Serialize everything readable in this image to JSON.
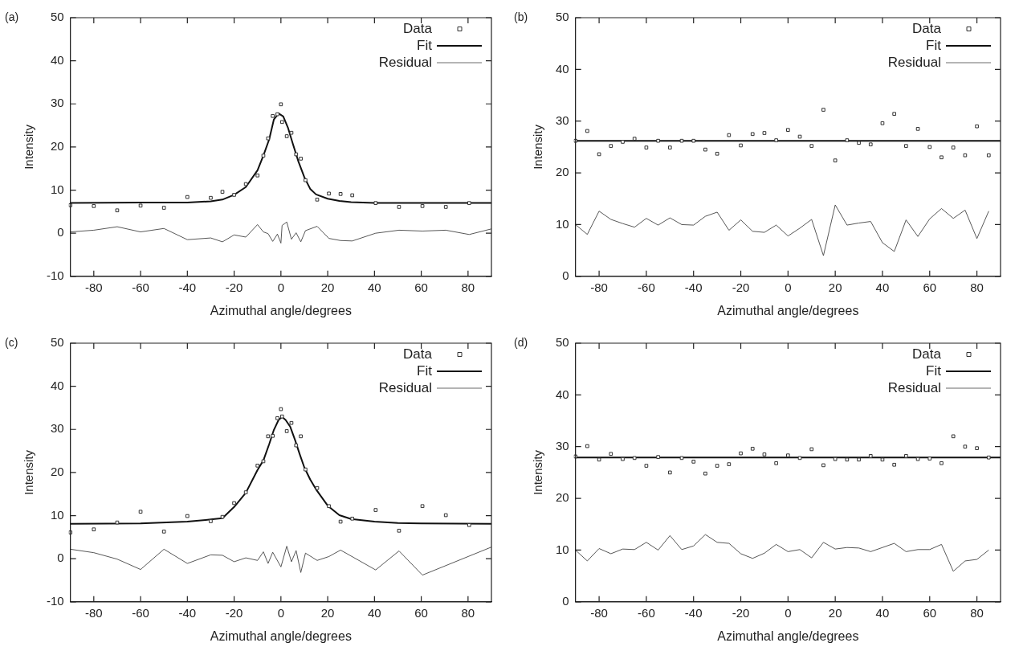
{
  "chart_data": [
    {
      "type": "scatter",
      "title": "(a)",
      "xlabel": "Azimuthal angle/degrees",
      "ylabel": "Intensity",
      "xlim": [
        -90,
        90
      ],
      "xticks": [
        -80,
        -60,
        -40,
        -20,
        0,
        20,
        40,
        60,
        80
      ],
      "ylim": [
        -10,
        50
      ],
      "yticks": [
        -10,
        0,
        10,
        20,
        30,
        40,
        50
      ],
      "grid": false,
      "legend": "top right",
      "series": [
        {
          "name": "Data",
          "type": "scatter",
          "marker": "square",
          "color": "#333333",
          "x": [
            -90,
            -80,
            -70,
            -60,
            -50,
            -40,
            -30,
            -25,
            -20,
            -15,
            -10,
            -7.5,
            -5.5,
            -3.5,
            -1.5,
            0,
            0.5,
            2.5,
            4.5,
            6.5,
            8.5,
            10.5,
            15.5,
            20.5,
            25.5,
            30.5,
            40.5,
            50.5,
            60.5,
            70.5,
            80.5
          ],
          "values": [
            6.5,
            6.3,
            5.3,
            6.4,
            5.9,
            8.4,
            8.2,
            9.6,
            8.9,
            11.4,
            13.4,
            18.0,
            22.0,
            27.2,
            27.6,
            29.9,
            25.8,
            22.5,
            23.3,
            18.3,
            17.3,
            12.3,
            7.8,
            9.2,
            9.1,
            8.8,
            7.0,
            6.1,
            6.3,
            6.1,
            7.0
          ]
        },
        {
          "name": "Fit",
          "type": "line",
          "marker": "none",
          "color": "#111111",
          "x": [
            -90,
            -60,
            -40,
            -30,
            -25,
            -20,
            -15,
            -10,
            -7.5,
            -5,
            -3,
            -1,
            1,
            3,
            5,
            7.5,
            10,
            12.5,
            15,
            20,
            25,
            30,
            40,
            90
          ],
          "values": [
            7.0,
            7.1,
            7.1,
            7.4,
            7.8,
            8.9,
            10.7,
            14.6,
            18.0,
            21.8,
            26.4,
            27.8,
            27.1,
            24.5,
            20.9,
            16.6,
            13.0,
            10.3,
            9.0,
            8.0,
            7.5,
            7.2,
            7.0,
            7.0
          ]
        },
        {
          "name": "Residual",
          "type": "line",
          "marker": "none",
          "color": "#444444",
          "x": [
            -90,
            -80,
            -70,
            -60,
            -50,
            -40,
            -30,
            -25,
            -20,
            -15,
            -10,
            -7.5,
            -5.5,
            -3.5,
            -1.5,
            0,
            0.5,
            2.5,
            4.5,
            6.5,
            8.5,
            10.5,
            15.5,
            20.5,
            25.5,
            30.5,
            40.5,
            50.5,
            60.5,
            70.5,
            80.5,
            90
          ],
          "values": [
            0.3,
            0.7,
            1.5,
            0.3,
            1.1,
            -1.5,
            -1.1,
            -2.0,
            -0.4,
            -0.9,
            2.0,
            0.3,
            -0.1,
            -1.9,
            -0.2,
            -2.3,
            1.8,
            2.6,
            -1.4,
            0.1,
            -2.0,
            0.6,
            1.6,
            -1.2,
            -1.7,
            -1.8,
            0.0,
            0.7,
            0.5,
            0.7,
            -0.3,
            1.0
          ]
        }
      ]
    },
    {
      "type": "scatter",
      "title": "(b)",
      "xlabel": "Azimuthal angle/degrees",
      "ylabel": "Intensity",
      "xlim": [
        -90,
        90
      ],
      "xticks": [
        -80,
        -60,
        -40,
        -20,
        0,
        20,
        40,
        60,
        80
      ],
      "ylim": [
        0,
        50
      ],
      "yticks": [
        0,
        10,
        20,
        30,
        40,
        50
      ],
      "grid": false,
      "legend": "top right",
      "series": [
        {
          "name": "Data",
          "type": "scatter",
          "marker": "square",
          "color": "#333333",
          "x": [
            -90,
            -85,
            -80,
            -75,
            -70,
            -65,
            -60,
            -55,
            -50,
            -45,
            -40,
            -35,
            -30,
            -25,
            -20,
            -15,
            -10,
            -5,
            0,
            5,
            10,
            15,
            20,
            25,
            30,
            35,
            40,
            45,
            50,
            55,
            60,
            65,
            70,
            75,
            80,
            85
          ],
          "values": [
            26.2,
            28.1,
            23.6,
            25.2,
            26.0,
            26.6,
            24.9,
            26.2,
            24.9,
            26.2,
            26.2,
            24.5,
            23.7,
            27.3,
            25.3,
            27.5,
            27.7,
            26.3,
            28.3,
            27.0,
            25.2,
            32.2,
            22.4,
            26.3,
            25.8,
            25.5,
            29.6,
            31.4,
            25.2,
            28.5,
            25.0,
            23.0,
            24.9,
            23.4,
            29.0,
            23.4
          ]
        },
        {
          "name": "Fit",
          "type": "line",
          "marker": "none",
          "color": "#111111",
          "x": [
            -90,
            90
          ],
          "values": [
            26.2,
            26.2
          ]
        },
        {
          "name": "Residual",
          "type": "line",
          "marker": "none",
          "color": "#444444",
          "x": [
            -90,
            -85,
            -80,
            -75,
            -70,
            -65,
            -60,
            -55,
            -50,
            -45,
            -40,
            -35,
            -30,
            -25,
            -20,
            -15,
            -10,
            -5,
            0,
            5,
            10,
            15,
            20,
            25,
            30,
            35,
            40,
            45,
            50,
            55,
            60,
            65,
            70,
            75,
            80,
            85
          ],
          "values": [
            10.0,
            8.1,
            12.6,
            11.0,
            10.2,
            9.5,
            11.2,
            9.9,
            11.3,
            10.0,
            9.9,
            11.6,
            12.4,
            8.9,
            10.9,
            8.7,
            8.5,
            9.9,
            7.8,
            9.3,
            11.0,
            4.0,
            13.8,
            9.9,
            10.3,
            10.6,
            6.5,
            4.8,
            10.9,
            7.7,
            11.1,
            13.1,
            11.2,
            12.8,
            7.3,
            12.6
          ]
        }
      ]
    },
    {
      "type": "scatter",
      "title": "(c)",
      "xlabel": "Azimuthal angle/degrees",
      "ylabel": "Intensity",
      "xlim": [
        -90,
        90
      ],
      "xticks": [
        -80,
        -60,
        -40,
        -20,
        0,
        20,
        40,
        60,
        80
      ],
      "ylim": [
        -10,
        50
      ],
      "yticks": [
        -10,
        0,
        10,
        20,
        30,
        40,
        50
      ],
      "grid": false,
      "legend": "top right",
      "series": [
        {
          "name": "Data",
          "type": "scatter",
          "marker": "square",
          "color": "#333333",
          "x": [
            -90,
            -80,
            -70,
            -60,
            -50,
            -40,
            -30,
            -25,
            -20,
            -15,
            -10,
            -7.5,
            -5.5,
            -3.5,
            -1.5,
            0,
            0.5,
            2.5,
            4.5,
            6.5,
            8.5,
            10.5,
            15.5,
            20.5,
            25.5,
            30.5,
            40.5,
            50.5,
            60.5,
            70.5,
            80.5
          ],
          "values": [
            6.1,
            6.8,
            8.4,
            10.9,
            6.3,
            9.9,
            8.7,
            9.7,
            12.9,
            15.4,
            21.6,
            22.6,
            28.4,
            28.5,
            32.6,
            34.7,
            33.0,
            29.6,
            31.5,
            26.3,
            28.4,
            20.7,
            16.4,
            12.2,
            8.6,
            9.3,
            11.3,
            6.5,
            12.2,
            10.1,
            7.8
          ]
        },
        {
          "name": "Fit",
          "type": "line",
          "marker": "none",
          "color": "#111111",
          "x": [
            -90,
            -60,
            -40,
            -30,
            -25,
            -20,
            -15,
            -10,
            -7.5,
            -5,
            -3,
            -1,
            0.5,
            2,
            4,
            6,
            8,
            10,
            12.5,
            15,
            20,
            25,
            30,
            40,
            50,
            60,
            90
          ],
          "values": [
            8.1,
            8.2,
            8.6,
            9.1,
            9.4,
            12.0,
            15.3,
            20.6,
            22.8,
            26.6,
            29.9,
            32.2,
            32.9,
            32.2,
            30.6,
            27.6,
            24.3,
            21.2,
            18.4,
            16.1,
            12.3,
            10.1,
            9.2,
            8.6,
            8.3,
            8.2,
            8.1
          ]
        },
        {
          "name": "Residual",
          "type": "line",
          "marker": "none",
          "color": "#444444",
          "x": [
            -90,
            -80,
            -70,
            -60,
            -50,
            -40,
            -30,
            -25,
            -20,
            -15,
            -10,
            -7.5,
            -5.5,
            -3.5,
            0,
            2.5,
            4.5,
            6.5,
            8.5,
            10.5,
            15.5,
            20.5,
            25.5,
            40.5,
            50.5,
            60.5,
            90
          ],
          "values": [
            2.2,
            1.4,
            -0.1,
            -2.5,
            2.2,
            -1.1,
            0.9,
            0.8,
            -0.7,
            0.2,
            -0.4,
            1.6,
            -1.1,
            1.5,
            -1.9,
            2.9,
            -0.7,
            1.9,
            -3.2,
            1.3,
            -0.4,
            0.5,
            2.0,
            -2.6,
            1.8,
            -3.8,
            2.7
          ]
        }
      ]
    },
    {
      "type": "scatter",
      "title": "(d)",
      "xlabel": "Azimuthal angle/degrees",
      "ylabel": "Intensity",
      "xlim": [
        -90,
        90
      ],
      "xticks": [
        -80,
        -60,
        -40,
        -20,
        0,
        20,
        40,
        60,
        80
      ],
      "ylim": [
        0,
        50
      ],
      "yticks": [
        0,
        10,
        20,
        30,
        40,
        50
      ],
      "grid": false,
      "legend": "top right",
      "series": [
        {
          "name": "Data",
          "type": "scatter",
          "marker": "square",
          "color": "#333333",
          "x": [
            -90,
            -85,
            -80,
            -75,
            -70,
            -65,
            -60,
            -55,
            -50,
            -45,
            -40,
            -35,
            -30,
            -25,
            -20,
            -15,
            -10,
            -5,
            0,
            5,
            10,
            15,
            20,
            25,
            30,
            35,
            40,
            45,
            50,
            55,
            60,
            65,
            70,
            75,
            80,
            85
          ],
          "values": [
            28.1,
            30.1,
            27.5,
            28.6,
            27.6,
            27.8,
            26.3,
            28.0,
            25.0,
            27.8,
            27.1,
            24.8,
            26.3,
            26.6,
            28.7,
            29.6,
            28.5,
            26.8,
            28.3,
            27.8,
            29.5,
            26.4,
            27.6,
            27.5,
            27.5,
            28.2,
            27.5,
            26.5,
            28.2,
            27.6,
            27.7,
            26.8,
            32.0,
            30.0,
            29.7,
            27.9
          ]
        },
        {
          "name": "Fit",
          "type": "line",
          "marker": "none",
          "color": "#111111",
          "x": [
            -90,
            90
          ],
          "values": [
            27.9,
            27.9
          ]
        },
        {
          "name": "Residual",
          "type": "line",
          "marker": "none",
          "color": "#444444",
          "x": [
            -90,
            -85,
            -80,
            -75,
            -70,
            -65,
            -60,
            -55,
            -50,
            -45,
            -40,
            -35,
            -30,
            -25,
            -20,
            -15,
            -10,
            -5,
            0,
            5,
            10,
            15,
            20,
            25,
            30,
            35,
            40,
            45,
            50,
            55,
            60,
            65,
            70,
            75,
            80,
            85
          ],
          "values": [
            10.0,
            7.9,
            10.3,
            9.3,
            10.2,
            10.1,
            11.5,
            10.0,
            12.8,
            10.1,
            10.8,
            13.0,
            11.5,
            11.3,
            9.3,
            8.4,
            9.4,
            11.1,
            9.7,
            10.1,
            8.5,
            11.5,
            10.2,
            10.5,
            10.4,
            9.7,
            10.5,
            11.3,
            9.7,
            10.1,
            10.1,
            11.1,
            5.9,
            7.9,
            8.2,
            10.0
          ]
        }
      ]
    }
  ]
}
